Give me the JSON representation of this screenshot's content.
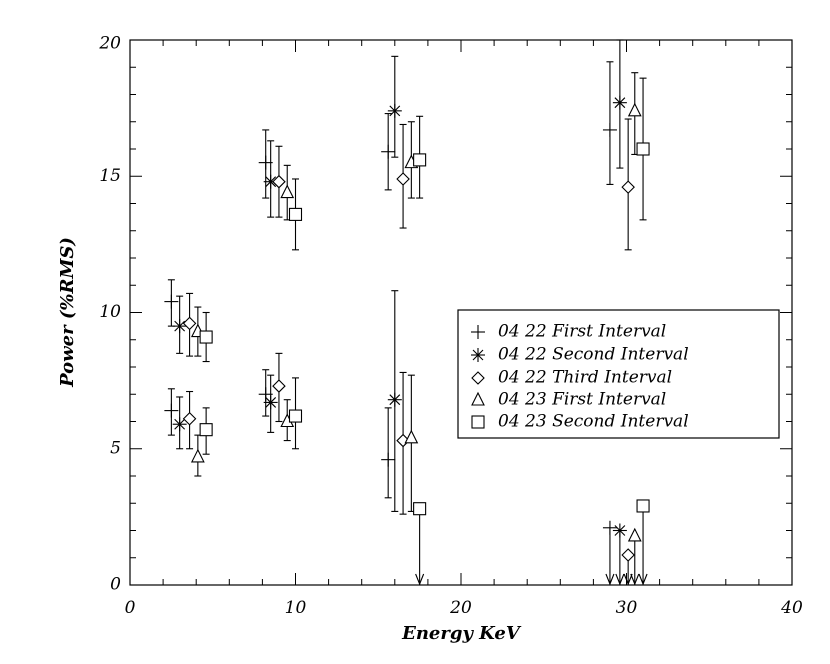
{
  "chart_data": {
    "type": "scatter",
    "xlabel": "Energy KeV",
    "ylabel": "Power (%RMS)",
    "xlim": [
      0,
      40
    ],
    "ylim": [
      0,
      20
    ],
    "xticks": [
      "0",
      "10",
      "20",
      "30",
      "40"
    ],
    "yticks": [
      "0",
      "5",
      "10",
      "15",
      "20"
    ],
    "grid": false,
    "legend_position": "right",
    "series": [
      {
        "name": "04 22 First Interval",
        "marker": "plus",
        "points": [
          {
            "x": 2.5,
            "y": 10.4,
            "ylo": 9.5,
            "yhi": 11.2,
            "upper_limit": false
          },
          {
            "x": 2.5,
            "y": 6.4,
            "ylo": 5.5,
            "yhi": 7.2,
            "upper_limit": false
          },
          {
            "x": 8.2,
            "y": 15.5,
            "ylo": 14.2,
            "yhi": 16.7,
            "upper_limit": false
          },
          {
            "x": 8.2,
            "y": 7.0,
            "ylo": 6.2,
            "yhi": 7.9,
            "upper_limit": false
          },
          {
            "x": 15.6,
            "y": 15.9,
            "ylo": 14.5,
            "yhi": 17.3,
            "upper_limit": false
          },
          {
            "x": 15.6,
            "y": 4.6,
            "ylo": 3.2,
            "yhi": 6.5,
            "upper_limit": false
          },
          {
            "x": 29.0,
            "y": 16.7,
            "ylo": 14.7,
            "yhi": 19.2,
            "upper_limit": false
          },
          {
            "x": 29.0,
            "y": 2.1,
            "ylo": 0.0,
            "yhi": 2.1,
            "upper_limit": true
          }
        ]
      },
      {
        "name": "04 22 Second Interval",
        "marker": "asterisk",
        "points": [
          {
            "x": 3.0,
            "y": 9.5,
            "ylo": 8.5,
            "yhi": 10.6,
            "upper_limit": false
          },
          {
            "x": 3.0,
            "y": 5.9,
            "ylo": 5.0,
            "yhi": 6.9,
            "upper_limit": false
          },
          {
            "x": 8.5,
            "y": 14.8,
            "ylo": 13.5,
            "yhi": 16.3,
            "upper_limit": false
          },
          {
            "x": 8.5,
            "y": 6.7,
            "ylo": 5.6,
            "yhi": 7.7,
            "upper_limit": false
          },
          {
            "x": 16.0,
            "y": 17.4,
            "ylo": 15.7,
            "yhi": 19.4,
            "upper_limit": false
          },
          {
            "x": 16.0,
            "y": 6.8,
            "ylo": 2.7,
            "yhi": 10.8,
            "upper_limit": false
          },
          {
            "x": 29.6,
            "y": 17.7,
            "ylo": 15.3,
            "yhi": 20.0,
            "upper_limit": false
          },
          {
            "x": 29.6,
            "y": 2.0,
            "ylo": 0.0,
            "yhi": 2.0,
            "upper_limit": true
          }
        ]
      },
      {
        "name": "04 22 Third Interval",
        "marker": "diamond",
        "points": [
          {
            "x": 3.6,
            "y": 9.6,
            "ylo": 8.4,
            "yhi": 10.7,
            "upper_limit": false
          },
          {
            "x": 3.6,
            "y": 6.1,
            "ylo": 5.0,
            "yhi": 7.1,
            "upper_limit": false
          },
          {
            "x": 9.0,
            "y": 14.8,
            "ylo": 13.5,
            "yhi": 16.1,
            "upper_limit": false
          },
          {
            "x": 9.0,
            "y": 7.3,
            "ylo": 6.0,
            "yhi": 8.5,
            "upper_limit": false
          },
          {
            "x": 16.5,
            "y": 14.9,
            "ylo": 13.1,
            "yhi": 16.9,
            "upper_limit": false
          },
          {
            "x": 16.5,
            "y": 5.3,
            "ylo": 2.6,
            "yhi": 7.8,
            "upper_limit": false
          },
          {
            "x": 30.1,
            "y": 14.6,
            "ylo": 12.3,
            "yhi": 17.1,
            "upper_limit": false
          },
          {
            "x": 30.1,
            "y": 1.1,
            "ylo": 0.0,
            "yhi": 1.1,
            "upper_limit": true
          }
        ]
      },
      {
        "name": "04 23 First Interval",
        "marker": "triangle",
        "points": [
          {
            "x": 4.1,
            "y": 9.3,
            "ylo": 8.4,
            "yhi": 10.2,
            "upper_limit": false
          },
          {
            "x": 4.1,
            "y": 4.7,
            "ylo": 4.0,
            "yhi": 5.5,
            "upper_limit": false
          },
          {
            "x": 9.5,
            "y": 14.4,
            "ylo": 13.4,
            "yhi": 15.4,
            "upper_limit": false
          },
          {
            "x": 9.5,
            "y": 6.0,
            "ylo": 5.3,
            "yhi": 6.8,
            "upper_limit": false
          },
          {
            "x": 17.0,
            "y": 15.5,
            "ylo": 14.2,
            "yhi": 17.0,
            "upper_limit": false
          },
          {
            "x": 17.0,
            "y": 5.4,
            "ylo": 2.7,
            "yhi": 7.7,
            "upper_limit": false
          },
          {
            "x": 30.5,
            "y": 17.4,
            "ylo": 15.8,
            "yhi": 18.8,
            "upper_limit": false
          },
          {
            "x": 30.5,
            "y": 1.8,
            "ylo": 0.0,
            "yhi": 1.8,
            "upper_limit": true
          }
        ]
      },
      {
        "name": "04 23 Second Interval",
        "marker": "square",
        "points": [
          {
            "x": 4.6,
            "y": 9.1,
            "ylo": 8.2,
            "yhi": 10.0,
            "upper_limit": false
          },
          {
            "x": 4.6,
            "y": 5.7,
            "ylo": 4.8,
            "yhi": 6.5,
            "upper_limit": false
          },
          {
            "x": 10.0,
            "y": 13.6,
            "ylo": 12.3,
            "yhi": 14.9,
            "upper_limit": false
          },
          {
            "x": 10.0,
            "y": 6.2,
            "ylo": 5.0,
            "yhi": 7.6,
            "upper_limit": false
          },
          {
            "x": 17.5,
            "y": 15.6,
            "ylo": 14.2,
            "yhi": 17.2,
            "upper_limit": false
          },
          {
            "x": 17.5,
            "y": 2.8,
            "ylo": 0.0,
            "yhi": 2.8,
            "upper_limit": true
          },
          {
            "x": 31.0,
            "y": 16.0,
            "ylo": 13.4,
            "yhi": 18.6,
            "upper_limit": false
          },
          {
            "x": 31.0,
            "y": 2.9,
            "ylo": 0.0,
            "yhi": 2.9,
            "upper_limit": true
          }
        ]
      }
    ]
  }
}
